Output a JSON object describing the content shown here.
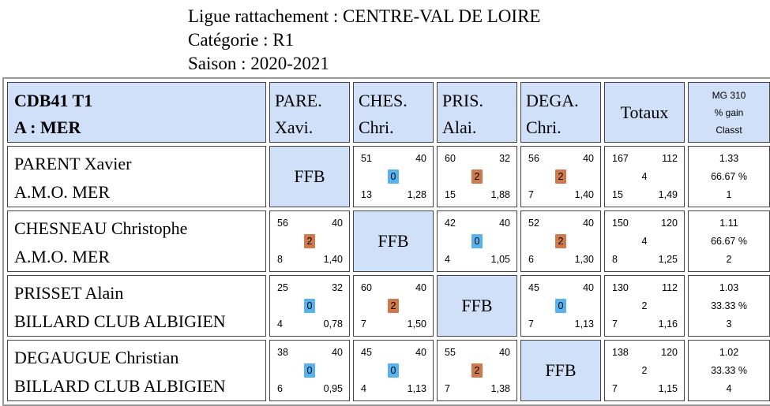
{
  "header": {
    "ligue": "Ligue rattachement : CENTRE-VAL DE LOIRE",
    "categorie": "Catégorie : R1",
    "saison": "Saison : 2020-2021"
  },
  "table": {
    "corner_line1": "CDB41 T1",
    "corner_line2": "A : MER",
    "columns": [
      {
        "line1": "PARE.",
        "line2": "Xavi."
      },
      {
        "line1": "CHES.",
        "line2": "Chri."
      },
      {
        "line1": "PRIS.",
        "line2": "Alai."
      },
      {
        "line1": "DEGA.",
        "line2": "Chri."
      }
    ],
    "totaux_label": "Totaux",
    "mg_label1": "MG 310",
    "mg_label2": "% gain",
    "mg_label3": "Classt",
    "ffb_label": "FFB",
    "players": [
      {
        "name": "PARENT Xavier",
        "club": "A.M.O. MER",
        "matches": [
          null,
          {
            "points": "51",
            "distance": "40",
            "result": "0",
            "innings": "13",
            "average": "1,28"
          },
          {
            "points": "60",
            "distance": "32",
            "result": "2",
            "innings": "15",
            "average": "1,88"
          },
          {
            "points": "56",
            "distance": "40",
            "result": "2",
            "innings": "7",
            "average": "1,40"
          }
        ],
        "totals": {
          "points": "167",
          "distance": "112",
          "result": "4",
          "innings": "15",
          "average": "1,49"
        },
        "mg": "1.33",
        "pct": "66.67 %",
        "rank": "1"
      },
      {
        "name": "CHESNEAU Christophe",
        "club": "A.M.O. MER",
        "matches": [
          {
            "points": "56",
            "distance": "40",
            "result": "2",
            "innings": "8",
            "average": "1,40"
          },
          null,
          {
            "points": "42",
            "distance": "40",
            "result": "0",
            "innings": "4",
            "average": "1,05"
          },
          {
            "points": "52",
            "distance": "40",
            "result": "2",
            "innings": "6",
            "average": "1,30"
          }
        ],
        "totals": {
          "points": "150",
          "distance": "120",
          "result": "4",
          "innings": "8",
          "average": "1,25"
        },
        "mg": "1.11",
        "pct": "66.67 %",
        "rank": "2"
      },
      {
        "name": "PRISSET Alain",
        "club": "BILLARD CLUB ALBIGIEN",
        "matches": [
          {
            "points": "25",
            "distance": "32",
            "result": "0",
            "innings": "4",
            "average": "0,78"
          },
          {
            "points": "60",
            "distance": "40",
            "result": "2",
            "innings": "7",
            "average": "1,50"
          },
          null,
          {
            "points": "45",
            "distance": "40",
            "result": "0",
            "innings": "7",
            "average": "1,13"
          }
        ],
        "totals": {
          "points": "130",
          "distance": "112",
          "result": "2",
          "innings": "7",
          "average": "1,16"
        },
        "mg": "1.03",
        "pct": "33.33 %",
        "rank": "3"
      },
      {
        "name": "DEGAUGUE Christian",
        "club": "BILLARD CLUB ALBIGIEN",
        "matches": [
          {
            "points": "38",
            "distance": "40",
            "result": "0",
            "innings": "6",
            "average": "0,95"
          },
          {
            "points": "45",
            "distance": "40",
            "result": "0",
            "innings": "4",
            "average": "1,13"
          },
          {
            "points": "55",
            "distance": "40",
            "result": "2",
            "innings": "7",
            "average": "1,38"
          },
          null
        ],
        "totals": {
          "points": "138",
          "distance": "120",
          "result": "2",
          "innings": "7",
          "average": "1,15"
        },
        "mg": "1.02",
        "pct": "33.33 %",
        "rank": "4"
      }
    ]
  },
  "colors": {
    "header_bg": "#cfe0f8",
    "win_badge": "#d0794b",
    "loss_badge": "#56b3f0"
  }
}
